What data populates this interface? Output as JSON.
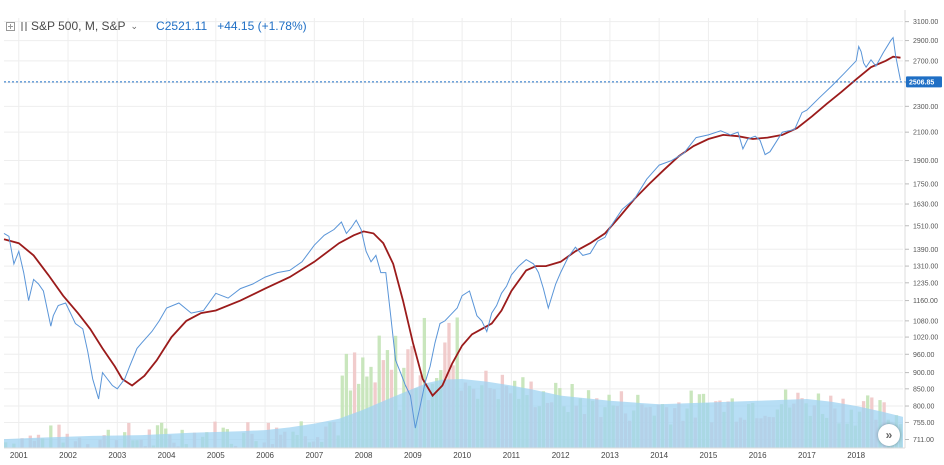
{
  "header": {
    "symbol": "S&P 500, M, S&P",
    "close_label": "C",
    "close_value": "2521.11",
    "change": "+44.15 (+1.78%)"
  },
  "colors": {
    "price_line": "#5a95d8",
    "moving_average": "#9b1b1b",
    "volume_area": "#9fd3f2",
    "volume_bar_up": "#c3e3b6",
    "volume_bar_down": "#efc6c6",
    "current_price_badge": "#1f6fc5",
    "grid": "#eeeeee"
  },
  "nav_button": {
    "icon": "double-chevron-right-icon",
    "glyph": "»"
  },
  "chart_data": {
    "type": "line",
    "title": "",
    "xlabel": "",
    "ylabel": "",
    "x_ticks": [
      "2001",
      "2002",
      "2003",
      "2004",
      "2005",
      "2006",
      "2007",
      "2008",
      "2009",
      "2010",
      "2011",
      "2012",
      "2013",
      "2014",
      "2015",
      "2016",
      "2017",
      "2018"
    ],
    "y_ticks": [
      "3100.00",
      "2900.00",
      "2700.00",
      "2500.00",
      "2300.00",
      "2100.00",
      "1900.00",
      "1750.00",
      "1630.00",
      "1510.00",
      "1390.00",
      "1310.00",
      "1235.00",
      "1160.00",
      "1080.00",
      "1020.00",
      "960.00",
      "900.00",
      "850.00",
      "800.00",
      "755.00",
      "711.00"
    ],
    "y_scale": "log",
    "ylim": [
      690,
      3140
    ],
    "xlim": [
      2000.7,
      2018.95
    ],
    "current_price": {
      "label": "2506.85",
      "value": 2506.85
    },
    "grid": true,
    "series": [
      {
        "kind": "price",
        "x": [
          2000.7,
          2000.8,
          2000.9,
          2001.0,
          2001.1,
          2001.2,
          2001.3,
          2001.4,
          2001.5,
          2001.65,
          2001.7,
          2001.8,
          2001.95,
          2002.05,
          2002.15,
          2002.3,
          2002.4,
          2002.5,
          2002.62,
          2002.7,
          2002.8,
          2002.9,
          2003.0,
          2003.15,
          2003.25,
          2003.4,
          2003.5,
          2003.7,
          2003.85,
          2004.0,
          2004.25,
          2004.5,
          2004.75,
          2005.0,
          2005.25,
          2005.5,
          2005.75,
          2006.0,
          2006.25,
          2006.5,
          2006.75,
          2007.0,
          2007.2,
          2007.4,
          2007.55,
          2007.65,
          2007.75,
          2007.85,
          2007.95,
          2008.05,
          2008.15,
          2008.25,
          2008.35,
          2008.45,
          2008.55,
          2008.65,
          2008.75,
          2008.85,
          2008.95,
          2009.05,
          2009.15,
          2009.25,
          2009.35,
          2009.45,
          2009.55,
          2009.65,
          2009.75,
          2009.9,
          2010.0,
          2010.15,
          2010.3,
          2010.4,
          2010.5,
          2010.6,
          2010.7,
          2010.8,
          2010.9,
          2011.0,
          2011.15,
          2011.3,
          2011.45,
          2011.55,
          2011.65,
          2011.75,
          2011.9,
          2012.0,
          2012.15,
          2012.3,
          2012.45,
          2012.6,
          2012.75,
          2012.9,
          2013.0,
          2013.25,
          2013.5,
          2013.75,
          2014.0,
          2014.25,
          2014.5,
          2014.75,
          2015.0,
          2015.25,
          2015.45,
          2015.6,
          2015.7,
          2015.8,
          2015.95,
          2016.05,
          2016.15,
          2016.25,
          2016.5,
          2016.75,
          2016.9,
          2017.0,
          2017.25,
          2017.5,
          2017.75,
          2018.0,
          2018.05,
          2018.1,
          2018.15,
          2018.2,
          2018.3,
          2018.4,
          2018.55,
          2018.7,
          2018.75,
          2018.8,
          2018.9
        ],
        "values": [
          1470,
          1455,
          1320,
          1380,
          1280,
          1160,
          1250,
          1230,
          1200,
          1060,
          1100,
          1140,
          1150,
          1110,
          1070,
          1050,
          970,
          880,
          820,
          900,
          880,
          860,
          850,
          880,
          920,
          980,
          1000,
          1040,
          1080,
          1130,
          1150,
          1110,
          1120,
          1190,
          1170,
          1210,
          1230,
          1260,
          1280,
          1290,
          1330,
          1410,
          1460,
          1490,
          1530,
          1470,
          1500,
          1540,
          1490,
          1380,
          1330,
          1360,
          1280,
          1280,
          1100,
          940,
          900,
          860,
          830,
          740,
          800,
          870,
          920,
          1000,
          1070,
          1080,
          1100,
          1130,
          1180,
          1200,
          1100,
          1080,
          1040,
          1110,
          1140,
          1190,
          1220,
          1270,
          1310,
          1340,
          1320,
          1280,
          1210,
          1130,
          1230,
          1280,
          1350,
          1400,
          1360,
          1370,
          1430,
          1450,
          1500,
          1600,
          1660,
          1780,
          1870,
          1900,
          1950,
          2060,
          2080,
          2110,
          2080,
          2100,
          1980,
          2050,
          2070,
          2040,
          1940,
          1960,
          2100,
          2120,
          2250,
          2270,
          2370,
          2470,
          2580,
          2700,
          2840,
          2790,
          2680,
          2640,
          2710,
          2650,
          2780,
          2900,
          2930,
          2750,
          2520
        ]
      },
      {
        "kind": "moving-average",
        "x": [
          2000.7,
          2001.0,
          2001.3,
          2001.6,
          2001.9,
          2002.2,
          2002.45,
          2002.7,
          2002.95,
          2003.1,
          2003.3,
          2003.55,
          2003.8,
          2004.1,
          2004.4,
          2004.7,
          2005.0,
          2005.5,
          2006.0,
          2006.5,
          2007.0,
          2007.5,
          2007.8,
          2008.0,
          2008.2,
          2008.4,
          2008.6,
          2008.8,
          2009.0,
          2009.2,
          2009.4,
          2009.6,
          2009.8,
          2010.0,
          2010.2,
          2010.4,
          2010.6,
          2010.8,
          2011.0,
          2011.3,
          2011.5,
          2011.7,
          2012.0,
          2012.3,
          2012.6,
          2012.9,
          2013.2,
          2013.5,
          2013.8,
          2014.1,
          2014.4,
          2014.7,
          2015.0,
          2015.3,
          2015.6,
          2015.9,
          2016.2,
          2016.5,
          2016.8,
          2017.1,
          2017.4,
          2017.7,
          2018.0,
          2018.3,
          2018.6,
          2018.75,
          2018.9
        ],
        "values": [
          1440,
          1420,
          1360,
          1270,
          1180,
          1110,
          1050,
          980,
          920,
          880,
          860,
          890,
          940,
          1020,
          1080,
          1110,
          1120,
          1160,
          1210,
          1260,
          1330,
          1420,
          1460,
          1480,
          1470,
          1420,
          1320,
          1160,
          1000,
          880,
          830,
          860,
          930,
          990,
          1030,
          1050,
          1070,
          1120,
          1200,
          1290,
          1310,
          1310,
          1330,
          1380,
          1420,
          1470,
          1560,
          1660,
          1750,
          1840,
          1930,
          2000,
          2050,
          2080,
          2070,
          2050,
          2060,
          2080,
          2130,
          2220,
          2320,
          2420,
          2530,
          2640,
          2700,
          2740,
          2730
        ]
      }
    ],
    "volume": {
      "description_none": "",
      "area_x": [
        2000.7,
        2001.5,
        2002.5,
        2003.5,
        2004.5,
        2005.5,
        2006.0,
        2006.5,
        2007.0,
        2007.5,
        2008.0,
        2008.5,
        2009.0,
        2009.3,
        2009.6,
        2010.0,
        2010.5,
        2011.0,
        2011.5,
        2012.0,
        2013.0,
        2014.0,
        2015.0,
        2016.0,
        2017.0,
        2017.5,
        2018.0,
        2018.5,
        2018.95
      ],
      "area_values": [
        712,
        716,
        720,
        722,
        728,
        732,
        735,
        742,
        752,
        765,
        790,
        820,
        850,
        868,
        878,
        880,
        872,
        860,
        846,
        830,
        815,
        805,
        810,
        815,
        820,
        812,
        800,
        785,
        770
      ]
    }
  }
}
